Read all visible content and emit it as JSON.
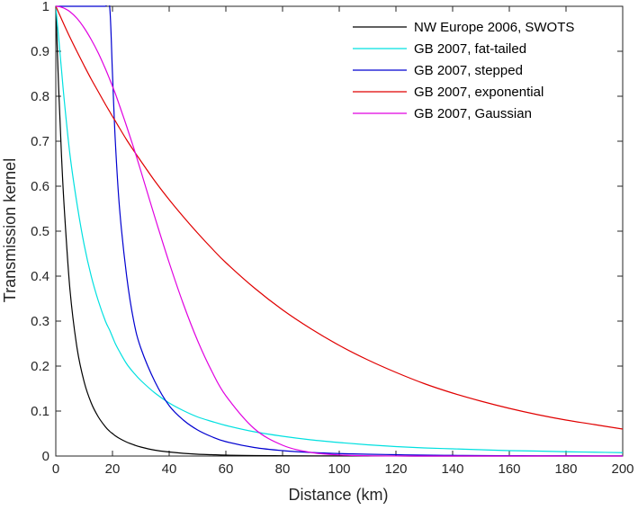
{
  "chart_data": {
    "type": "line",
    "title": "",
    "xlabel": "Distance (km)",
    "ylabel": "Transmission kernel",
    "xlim": [
      0,
      200
    ],
    "ylim": [
      0,
      1
    ],
    "xticks": [
      0,
      20,
      40,
      60,
      80,
      100,
      120,
      140,
      160,
      180,
      200
    ],
    "yticks": [
      0,
      0.1,
      0.2,
      0.3,
      0.4,
      0.5,
      0.6,
      0.7,
      0.8,
      0.9,
      1
    ],
    "xtick_labels": [
      "0",
      "20",
      "40",
      "60",
      "80",
      "100",
      "120",
      "140",
      "160",
      "180",
      "200"
    ],
    "ytick_labels": [
      "0",
      "0.1",
      "0.2",
      "0.3",
      "0.4",
      "0.5",
      "0.6",
      "0.7",
      "0.8",
      "0.9",
      "1"
    ],
    "grid": false,
    "legend_position": "top-right",
    "x": [
      0,
      1,
      2,
      3,
      5,
      7.5,
      10,
      12.5,
      15,
      17.5,
      19,
      20,
      21,
      22.5,
      25,
      27.5,
      30,
      35,
      40,
      45,
      50,
      55,
      60,
      70,
      80,
      90,
      100,
      110,
      120,
      130,
      140,
      150,
      160,
      170,
      180,
      190,
      200
    ],
    "series": [
      {
        "name": "NW Europe 2006, SWOTS",
        "color": "#000000",
        "values": [
          1.0,
          0.82,
          0.67,
          0.55,
          0.37,
          0.24,
          0.165,
          0.118,
          0.087,
          0.065,
          0.055,
          0.05,
          0.045,
          0.039,
          0.031,
          0.025,
          0.02,
          0.013,
          0.009,
          0.006,
          0.004,
          0.003,
          0.002,
          0.001,
          0.0006,
          0.0003,
          0.0002,
          0.0001,
          0.0001,
          0,
          0,
          0,
          0,
          0,
          0,
          0,
          0
        ]
      },
      {
        "name": "GB 2007, fat-tailed",
        "color": "#00e0e0",
        "values": [
          1.0,
          0.93,
          0.86,
          0.79,
          0.67,
          0.56,
          0.47,
          0.4,
          0.345,
          0.3,
          0.28,
          0.265,
          0.25,
          0.232,
          0.205,
          0.185,
          0.168,
          0.14,
          0.118,
          0.101,
          0.087,
          0.077,
          0.068,
          0.054,
          0.044,
          0.036,
          0.03,
          0.025,
          0.021,
          0.018,
          0.016,
          0.014,
          0.012,
          0.011,
          0.0095,
          0.0085,
          0.0075
        ]
      },
      {
        "name": "GB 2007, stepped",
        "color": "#0000d0",
        "values": [
          1.0,
          1.0,
          1.0,
          1.0,
          1.0,
          1.0,
          1.0,
          1.0,
          1.0,
          1.0,
          1.0,
          0.85,
          0.7,
          0.55,
          0.4,
          0.3,
          0.24,
          0.165,
          0.112,
          0.08,
          0.058,
          0.043,
          0.032,
          0.019,
          0.012,
          0.008,
          0.0055,
          0.004,
          0.003,
          0.002,
          0.0015,
          0.001,
          0.0008,
          0.0006,
          0.0005,
          0.0004,
          0.0003
        ]
      },
      {
        "name": "GB 2007, exponential",
        "color": "#e00000",
        "values": [
          1.0,
          0.986,
          0.972,
          0.958,
          0.931,
          0.899,
          0.868,
          0.838,
          0.81,
          0.782,
          0.766,
          0.755,
          0.745,
          0.729,
          0.703,
          0.679,
          0.656,
          0.611,
          0.57,
          0.532,
          0.496,
          0.462,
          0.43,
          0.374,
          0.325,
          0.283,
          0.246,
          0.214,
          0.186,
          0.161,
          0.14,
          0.122,
          0.106,
          0.092,
          0.08,
          0.07,
          0.06
        ]
      },
      {
        "name": "GB 2007, Gaussian",
        "color": "#e000e0",
        "values": [
          1.0,
          0.9995,
          0.998,
          0.9955,
          0.988,
          0.973,
          0.952,
          0.926,
          0.896,
          0.861,
          0.838,
          0.822,
          0.806,
          0.779,
          0.733,
          0.685,
          0.634,
          0.53,
          0.43,
          0.338,
          0.257,
          0.189,
          0.134,
          0.061,
          0.024,
          0.008,
          0.0024,
          0.0006,
          0.0001,
          0,
          0,
          0,
          0,
          0,
          0,
          0,
          0
        ]
      }
    ]
  }
}
